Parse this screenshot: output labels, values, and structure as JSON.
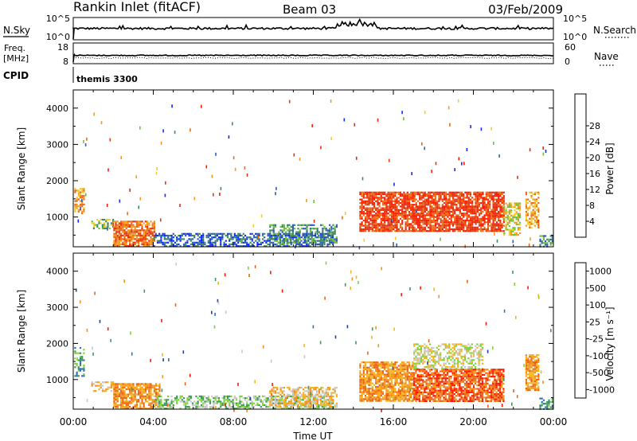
{
  "header": {
    "station": "Rankin Inlet (fitACF)",
    "beam": "Beam 03",
    "date": "03/Feb/2009"
  },
  "strips": {
    "nsky_label": "N.Sky",
    "nsky_ticks": [
      "10^5",
      "10^0"
    ],
    "nsearch_label": "N.Search",
    "nsearch_ticks": [
      "10^5",
      "10^0"
    ],
    "freq_label": "Freq.",
    "freq_unit": "[MHz]",
    "freq_ticks": [
      "18",
      "8"
    ],
    "nave_label": "Nave",
    "nave_ticks": [
      "60",
      "0"
    ],
    "cpid_label": "CPID",
    "cpid_value": "themis 3300"
  },
  "chart_data": [
    {
      "type": "heatmap",
      "ylabel": "Slant Range [km]",
      "xlim": [
        0,
        24
      ],
      "ylim": [
        180,
        4500
      ],
      "yticks": [
        1000,
        2000,
        3000,
        4000
      ],
      "colorbar": {
        "label": "Power [dB]",
        "ticks": [
          "4",
          "8",
          "12",
          "16",
          "20",
          "24",
          "28"
        ],
        "colors": [
          "#0a2bff",
          "#2e5cb8",
          "#3f8a5a",
          "#6ebf3a",
          "#f2cd2a",
          "#f59a1e",
          "#ec6a14",
          "#e3340f",
          "#ff1a00"
        ]
      },
      "regions": [
        {
          "t": [
            0.05,
            0.55
          ],
          "r": [
            1100,
            1800
          ],
          "level": 5
        },
        {
          "t": [
            0.9,
            2.0
          ],
          "r": [
            700,
            950
          ],
          "level": 3
        },
        {
          "t": [
            2.0,
            4.1
          ],
          "r": [
            200,
            900
          ],
          "level": 6
        },
        {
          "t": [
            4.0,
            13.0
          ],
          "r": [
            180,
            560
          ],
          "level": 1
        },
        {
          "t": [
            9.8,
            13.2
          ],
          "r": [
            250,
            800
          ],
          "level": 2
        },
        {
          "t": [
            14.3,
            21.5
          ],
          "r": [
            620,
            1700
          ],
          "level": 7
        },
        {
          "t": [
            21.5,
            22.3
          ],
          "r": [
            500,
            1400
          ],
          "level": 4
        },
        {
          "t": [
            22.6,
            23.3
          ],
          "r": [
            700,
            1700
          ],
          "level": 5
        },
        {
          "t": [
            23.3,
            24.0
          ],
          "r": [
            180,
            500
          ],
          "level": 2
        }
      ]
    },
    {
      "type": "heatmap",
      "ylabel": "Slant Range [km]",
      "xlabel": "Time UT",
      "xlim": [
        0,
        24
      ],
      "ylim": [
        180,
        4500
      ],
      "yticks": [
        1000,
        2000,
        3000,
        4000
      ],
      "xticks": [
        "00:00",
        "04:00",
        "08:00",
        "12:00",
        "16:00",
        "20:00",
        "00:00"
      ],
      "colorbar": {
        "label": "Velocity [m s⁻¹]",
        "ticks": [
          "1000",
          "500",
          "100",
          "25",
          "-25",
          "-100",
          "-500",
          "-1000"
        ],
        "colors": [
          "#1a3ea8",
          "#2f6fb4",
          "#3d9a54",
          "#7ed23a",
          "#c8c8c8",
          "#f5b41e",
          "#f5921a",
          "#ec6314",
          "#ff1500"
        ]
      },
      "regions": [
        {
          "t": [
            0.05,
            0.55
          ],
          "r": [
            1100,
            1900
          ],
          "level": 2
        },
        {
          "t": [
            0.9,
            2.0
          ],
          "r": [
            700,
            950
          ],
          "level": 5
        },
        {
          "t": [
            2.0,
            4.3
          ],
          "r": [
            200,
            900
          ],
          "level": 6
        },
        {
          "t": [
            4.0,
            13.0
          ],
          "r": [
            180,
            560
          ],
          "level": 3
        },
        {
          "t": [
            9.8,
            13.2
          ],
          "r": [
            250,
            800
          ],
          "level": 5
        },
        {
          "t": [
            14.3,
            17.0
          ],
          "r": [
            400,
            1500
          ],
          "level": 6
        },
        {
          "t": [
            17.0,
            20.5
          ],
          "r": [
            1300,
            2000
          ],
          "level": 4
        },
        {
          "t": [
            17.0,
            21.5
          ],
          "r": [
            400,
            1300
          ],
          "level": 7
        },
        {
          "t": [
            22.6,
            23.3
          ],
          "r": [
            700,
            1700
          ],
          "level": 6
        },
        {
          "t": [
            23.3,
            24.0
          ],
          "r": [
            180,
            500
          ],
          "level": 2
        }
      ]
    }
  ]
}
